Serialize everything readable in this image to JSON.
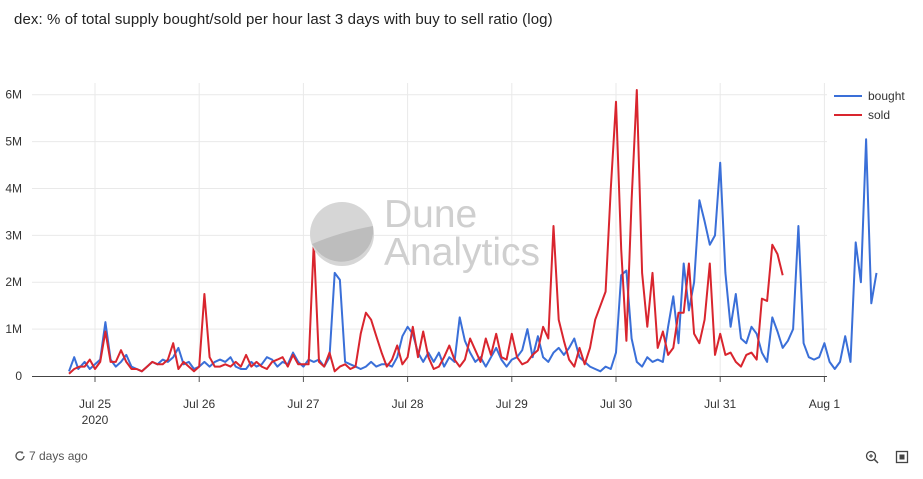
{
  "title": "dex: % of total supply bought/sold per hour last 3 days with buy to sell ratio (log)",
  "footer": {
    "updated": "7 days ago"
  },
  "watermark": {
    "line1": "Dune",
    "line2": "Analytics"
  },
  "colors": {
    "bought": "#3a6fd8",
    "sold": "#d9252e",
    "grid": "#e9e9e9",
    "axis": "#333333"
  },
  "chart_data": {
    "type": "line",
    "title": "dex: % of total supply bought/sold per hour last 3 days with buy to sell ratio (log)",
    "xlabel": "",
    "ylabel": "",
    "x_unit": "days since 2020-07-25 00:00",
    "xlim": [
      -0.4,
      7.05
    ],
    "ylim": [
      0,
      6250000
    ],
    "yticks": [
      0,
      1000000,
      2000000,
      3000000,
      4000000,
      5000000,
      6000000
    ],
    "ytick_labels": [
      "0",
      "1M",
      "2M",
      "3M",
      "4M",
      "5M",
      "6M"
    ],
    "xticks": [
      0,
      1,
      2,
      3,
      4,
      5,
      6,
      7
    ],
    "xtick_labels": [
      "Jul 25",
      "Jul 26",
      "Jul 27",
      "Jul 28",
      "Jul 29",
      "Jul 30",
      "Jul 31",
      "Aug 1"
    ],
    "xtick_sublabels": [
      "2020",
      "",
      "",
      "",
      "",
      "",
      "",
      ""
    ],
    "grid": true,
    "legend": "right",
    "series": [
      {
        "name": "bought",
        "color": "#3a6fd8",
        "points": [
          [
            -0.25,
            100000
          ],
          [
            -0.2,
            400000
          ],
          [
            -0.16,
            150000
          ],
          [
            -0.1,
            300000
          ],
          [
            -0.05,
            150000
          ],
          [
            0.0,
            250000
          ],
          [
            0.05,
            350000
          ],
          [
            0.1,
            1150000
          ],
          [
            0.15,
            350000
          ],
          [
            0.2,
            200000
          ],
          [
            0.25,
            300000
          ],
          [
            0.3,
            450000
          ],
          [
            0.35,
            200000
          ],
          [
            0.4,
            150000
          ],
          [
            0.45,
            100000
          ],
          [
            0.5,
            200000
          ],
          [
            0.55,
            300000
          ],
          [
            0.6,
            250000
          ],
          [
            0.65,
            350000
          ],
          [
            0.7,
            300000
          ],
          [
            0.75,
            400000
          ],
          [
            0.8,
            600000
          ],
          [
            0.85,
            250000
          ],
          [
            0.9,
            300000
          ],
          [
            0.95,
            150000
          ],
          [
            1.0,
            200000
          ],
          [
            1.05,
            300000
          ],
          [
            1.1,
            200000
          ],
          [
            1.15,
            300000
          ],
          [
            1.2,
            350000
          ],
          [
            1.25,
            300000
          ],
          [
            1.3,
            400000
          ],
          [
            1.35,
            200000
          ],
          [
            1.4,
            150000
          ],
          [
            1.45,
            150000
          ],
          [
            1.5,
            300000
          ],
          [
            1.55,
            200000
          ],
          [
            1.6,
            250000
          ],
          [
            1.65,
            400000
          ],
          [
            1.7,
            350000
          ],
          [
            1.75,
            200000
          ],
          [
            1.8,
            300000
          ],
          [
            1.85,
            250000
          ],
          [
            1.9,
            500000
          ],
          [
            1.95,
            300000
          ],
          [
            2.0,
            200000
          ],
          [
            2.05,
            350000
          ],
          [
            2.1,
            300000
          ],
          [
            2.15,
            350000
          ],
          [
            2.2,
            200000
          ],
          [
            2.25,
            400000
          ],
          [
            2.3,
            2200000
          ],
          [
            2.35,
            2050000
          ],
          [
            2.4,
            300000
          ],
          [
            2.45,
            250000
          ],
          [
            2.5,
            200000
          ],
          [
            2.55,
            150000
          ],
          [
            2.6,
            200000
          ],
          [
            2.65,
            300000
          ],
          [
            2.7,
            200000
          ],
          [
            2.75,
            250000
          ],
          [
            2.8,
            250000
          ],
          [
            2.85,
            200000
          ],
          [
            2.9,
            400000
          ],
          [
            2.95,
            850000
          ],
          [
            3.0,
            1050000
          ],
          [
            3.05,
            900000
          ],
          [
            3.1,
            500000
          ],
          [
            3.15,
            300000
          ],
          [
            3.2,
            500000
          ],
          [
            3.25,
            300000
          ],
          [
            3.3,
            500000
          ],
          [
            3.35,
            200000
          ],
          [
            3.4,
            400000
          ],
          [
            3.45,
            300000
          ],
          [
            3.5,
            1250000
          ],
          [
            3.55,
            750000
          ],
          [
            3.6,
            500000
          ],
          [
            3.65,
            300000
          ],
          [
            3.7,
            400000
          ],
          [
            3.75,
            200000
          ],
          [
            3.8,
            400000
          ],
          [
            3.85,
            600000
          ],
          [
            3.9,
            350000
          ],
          [
            3.95,
            200000
          ],
          [
            4.0,
            350000
          ],
          [
            4.05,
            400000
          ],
          [
            4.1,
            550000
          ],
          [
            4.15,
            1000000
          ],
          [
            4.2,
            400000
          ],
          [
            4.25,
            850000
          ],
          [
            4.3,
            400000
          ],
          [
            4.35,
            300000
          ],
          [
            4.4,
            500000
          ],
          [
            4.45,
            600000
          ],
          [
            4.5,
            450000
          ],
          [
            4.55,
            600000
          ],
          [
            4.6,
            800000
          ],
          [
            4.65,
            400000
          ],
          [
            4.7,
            300000
          ],
          [
            4.75,
            200000
          ],
          [
            4.8,
            150000
          ],
          [
            4.85,
            100000
          ],
          [
            4.9,
            200000
          ],
          [
            4.95,
            150000
          ],
          [
            5.0,
            500000
          ],
          [
            5.05,
            2150000
          ],
          [
            5.1,
            2250000
          ],
          [
            5.15,
            800000
          ],
          [
            5.2,
            300000
          ],
          [
            5.25,
            200000
          ],
          [
            5.3,
            400000
          ],
          [
            5.35,
            300000
          ],
          [
            5.4,
            350000
          ],
          [
            5.45,
            300000
          ],
          [
            5.5,
            1050000
          ],
          [
            5.55,
            1700000
          ],
          [
            5.6,
            700000
          ],
          [
            5.65,
            2400000
          ],
          [
            5.7,
            1400000
          ],
          [
            5.75,
            2000000
          ],
          [
            5.8,
            3750000
          ],
          [
            5.85,
            3300000
          ],
          [
            5.9,
            2800000
          ],
          [
            5.95,
            3000000
          ],
          [
            6.0,
            4550000
          ],
          [
            6.05,
            2200000
          ],
          [
            6.1,
            1050000
          ],
          [
            6.15,
            1750000
          ],
          [
            6.2,
            800000
          ],
          [
            6.25,
            700000
          ],
          [
            6.3,
            1050000
          ],
          [
            6.35,
            900000
          ],
          [
            6.4,
            500000
          ],
          [
            6.45,
            300000
          ],
          [
            6.5,
            1250000
          ],
          [
            6.55,
            950000
          ],
          [
            6.6,
            600000
          ],
          [
            6.65,
            750000
          ],
          [
            6.7,
            1000000
          ],
          [
            6.75,
            3200000
          ],
          [
            6.8,
            700000
          ],
          [
            6.85,
            400000
          ],
          [
            6.9,
            350000
          ],
          [
            6.95,
            400000
          ],
          [
            7.0,
            700000
          ],
          [
            7.05,
            300000
          ],
          [
            7.1,
            150000
          ],
          [
            7.15,
            300000
          ],
          [
            7.2,
            850000
          ],
          [
            7.25,
            300000
          ],
          [
            7.3,
            2850000
          ],
          [
            7.35,
            2000000
          ],
          [
            7.4,
            5050000
          ],
          [
            7.45,
            1550000
          ],
          [
            7.5,
            2200000
          ]
        ]
      },
      {
        "name": "sold",
        "color": "#d9252e",
        "points": [
          [
            -0.25,
            50000
          ],
          [
            -0.2,
            150000
          ],
          [
            -0.15,
            200000
          ],
          [
            -0.1,
            200000
          ],
          [
            -0.05,
            350000
          ],
          [
            0.0,
            150000
          ],
          [
            0.05,
            300000
          ],
          [
            0.1,
            950000
          ],
          [
            0.15,
            300000
          ],
          [
            0.2,
            300000
          ],
          [
            0.25,
            550000
          ],
          [
            0.3,
            300000
          ],
          [
            0.35,
            150000
          ],
          [
            0.4,
            150000
          ],
          [
            0.45,
            100000
          ],
          [
            0.5,
            200000
          ],
          [
            0.55,
            300000
          ],
          [
            0.6,
            250000
          ],
          [
            0.65,
            250000
          ],
          [
            0.7,
            350000
          ],
          [
            0.75,
            700000
          ],
          [
            0.8,
            150000
          ],
          [
            0.85,
            300000
          ],
          [
            0.9,
            200000
          ],
          [
            0.95,
            100000
          ],
          [
            1.0,
            200000
          ],
          [
            1.05,
            1750000
          ],
          [
            1.1,
            400000
          ],
          [
            1.15,
            200000
          ],
          [
            1.2,
            200000
          ],
          [
            1.25,
            250000
          ],
          [
            1.3,
            200000
          ],
          [
            1.35,
            300000
          ],
          [
            1.4,
            200000
          ],
          [
            1.45,
            450000
          ],
          [
            1.5,
            200000
          ],
          [
            1.55,
            300000
          ],
          [
            1.6,
            200000
          ],
          [
            1.65,
            150000
          ],
          [
            1.7,
            300000
          ],
          [
            1.75,
            350000
          ],
          [
            1.8,
            400000
          ],
          [
            1.85,
            200000
          ],
          [
            1.9,
            450000
          ],
          [
            1.95,
            250000
          ],
          [
            2.0,
            250000
          ],
          [
            2.05,
            250000
          ],
          [
            2.1,
            2850000
          ],
          [
            2.15,
            300000
          ],
          [
            2.2,
            200000
          ],
          [
            2.25,
            500000
          ],
          [
            2.3,
            100000
          ],
          [
            2.35,
            200000
          ],
          [
            2.4,
            250000
          ],
          [
            2.45,
            150000
          ],
          [
            2.5,
            200000
          ],
          [
            2.55,
            900000
          ],
          [
            2.6,
            1350000
          ],
          [
            2.65,
            1200000
          ],
          [
            2.7,
            850000
          ],
          [
            2.75,
            500000
          ],
          [
            2.8,
            200000
          ],
          [
            2.85,
            350000
          ],
          [
            2.9,
            650000
          ],
          [
            2.95,
            250000
          ],
          [
            3.0,
            400000
          ],
          [
            3.05,
            1050000
          ],
          [
            3.1,
            400000
          ],
          [
            3.15,
            950000
          ],
          [
            3.2,
            400000
          ],
          [
            3.25,
            150000
          ],
          [
            3.3,
            200000
          ],
          [
            3.35,
            400000
          ],
          [
            3.4,
            650000
          ],
          [
            3.45,
            350000
          ],
          [
            3.5,
            200000
          ],
          [
            3.55,
            350000
          ],
          [
            3.6,
            800000
          ],
          [
            3.65,
            550000
          ],
          [
            3.7,
            300000
          ],
          [
            3.75,
            800000
          ],
          [
            3.8,
            450000
          ],
          [
            3.85,
            900000
          ],
          [
            3.9,
            400000
          ],
          [
            3.95,
            350000
          ],
          [
            4.0,
            900000
          ],
          [
            4.05,
            400000
          ],
          [
            4.1,
            250000
          ],
          [
            4.15,
            300000
          ],
          [
            4.2,
            450000
          ],
          [
            4.25,
            550000
          ],
          [
            4.3,
            1050000
          ],
          [
            4.35,
            800000
          ],
          [
            4.4,
            3200000
          ],
          [
            4.45,
            1200000
          ],
          [
            4.5,
            750000
          ],
          [
            4.55,
            350000
          ],
          [
            4.6,
            200000
          ],
          [
            4.65,
            600000
          ],
          [
            4.7,
            250000
          ],
          [
            4.75,
            600000
          ],
          [
            4.8,
            1200000
          ],
          [
            4.85,
            1500000
          ],
          [
            4.9,
            1800000
          ],
          [
            4.95,
            4000000
          ],
          [
            5.0,
            5850000
          ],
          [
            5.05,
            2700000
          ],
          [
            5.1,
            750000
          ],
          [
            5.15,
            3750000
          ],
          [
            5.2,
            6100000
          ],
          [
            5.25,
            2200000
          ],
          [
            5.3,
            1050000
          ],
          [
            5.35,
            2200000
          ],
          [
            5.4,
            600000
          ],
          [
            5.45,
            950000
          ],
          [
            5.5,
            450000
          ],
          [
            5.55,
            600000
          ],
          [
            5.6,
            1350000
          ],
          [
            5.65,
            1350000
          ],
          [
            5.7,
            2400000
          ],
          [
            5.75,
            900000
          ],
          [
            5.8,
            700000
          ],
          [
            5.85,
            1200000
          ],
          [
            5.9,
            2400000
          ],
          [
            5.95,
            450000
          ],
          [
            6.0,
            900000
          ],
          [
            6.05,
            450000
          ],
          [
            6.1,
            500000
          ],
          [
            6.15,
            300000
          ],
          [
            6.2,
            200000
          ],
          [
            6.25,
            450000
          ],
          [
            6.3,
            500000
          ],
          [
            6.35,
            350000
          ],
          [
            6.4,
            1650000
          ],
          [
            6.45,
            1600000
          ],
          [
            6.5,
            2800000
          ],
          [
            6.55,
            2600000
          ],
          [
            6.6,
            2150000
          ]
        ]
      }
    ]
  }
}
